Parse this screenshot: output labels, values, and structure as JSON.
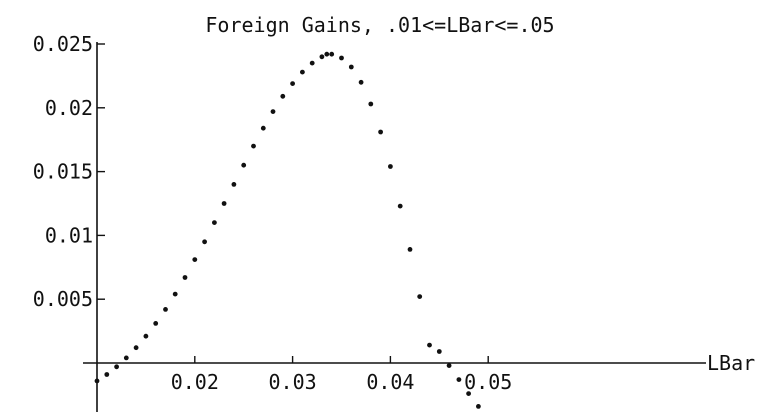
{
  "chart_data": {
    "type": "scatter",
    "title": "Foreign Gains, .01<=LBar<=.05",
    "xlabel": "LBar",
    "ylabel": "",
    "xlim": [
      0.01,
      0.05
    ],
    "ylim": [
      -0.0035,
      0.0255
    ],
    "grid": false,
    "legend": "none",
    "x_ticks": [
      {
        "value": 0.02,
        "label": "0.02"
      },
      {
        "value": 0.03,
        "label": "0.03"
      },
      {
        "value": 0.04,
        "label": "0.04"
      },
      {
        "value": 0.05,
        "label": "0.05"
      }
    ],
    "y_ticks": [
      {
        "value": 0.005,
        "label": "0.005"
      },
      {
        "value": 0.01,
        "label": "0.01"
      },
      {
        "value": 0.015,
        "label": "0.015"
      },
      {
        "value": 0.02,
        "label": "0.02"
      },
      {
        "value": 0.025,
        "label": "0.025"
      }
    ],
    "series": [
      {
        "color": "#111111",
        "points": [
          {
            "x": 0.01,
            "y": -0.0014
          },
          {
            "x": 0.011,
            "y": -0.0009
          },
          {
            "x": 0.012,
            "y": -0.0003
          },
          {
            "x": 0.013,
            "y": 0.0004
          },
          {
            "x": 0.014,
            "y": 0.0012
          },
          {
            "x": 0.015,
            "y": 0.0021
          },
          {
            "x": 0.016,
            "y": 0.0031
          },
          {
            "x": 0.017,
            "y": 0.0042
          },
          {
            "x": 0.018,
            "y": 0.0054
          },
          {
            "x": 0.019,
            "y": 0.0067
          },
          {
            "x": 0.02,
            "y": 0.0081
          },
          {
            "x": 0.021,
            "y": 0.0095
          },
          {
            "x": 0.022,
            "y": 0.011
          },
          {
            "x": 0.023,
            "y": 0.0125
          },
          {
            "x": 0.024,
            "y": 0.014
          },
          {
            "x": 0.025,
            "y": 0.0155
          },
          {
            "x": 0.026,
            "y": 0.017
          },
          {
            "x": 0.027,
            "y": 0.0184
          },
          {
            "x": 0.028,
            "y": 0.0197
          },
          {
            "x": 0.029,
            "y": 0.0209
          },
          {
            "x": 0.03,
            "y": 0.0219
          },
          {
            "x": 0.031,
            "y": 0.0228
          },
          {
            "x": 0.032,
            "y": 0.0235
          },
          {
            "x": 0.033,
            "y": 0.024
          },
          {
            "x": 0.0335,
            "y": 0.0242
          },
          {
            "x": 0.034,
            "y": 0.0242
          },
          {
            "x": 0.035,
            "y": 0.0239
          },
          {
            "x": 0.036,
            "y": 0.0232
          },
          {
            "x": 0.037,
            "y": 0.022
          },
          {
            "x": 0.038,
            "y": 0.0203
          },
          {
            "x": 0.039,
            "y": 0.0181
          },
          {
            "x": 0.04,
            "y": 0.0154
          },
          {
            "x": 0.041,
            "y": 0.0123
          },
          {
            "x": 0.042,
            "y": 0.0089
          },
          {
            "x": 0.043,
            "y": 0.0052
          },
          {
            "x": 0.044,
            "y": 0.0014
          },
          {
            "x": 0.045,
            "y": 0.0009
          },
          {
            "x": 0.046,
            "y": -0.0002
          },
          {
            "x": 0.047,
            "y": -0.0013
          },
          {
            "x": 0.048,
            "y": -0.0024
          },
          {
            "x": 0.049,
            "y": -0.0034
          }
        ]
      }
    ]
  }
}
